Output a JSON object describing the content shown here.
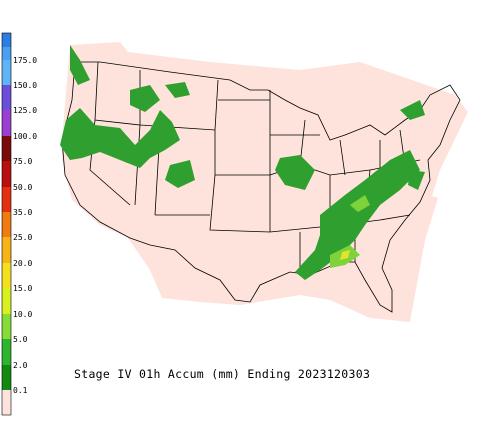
{
  "title": "Stage IV 01h Accum (mm) Ending 2023120303",
  "legend": {
    "labels": [
      "175.0",
      "150.0",
      "125.0",
      "100.0",
      "75.0",
      "50.0",
      "35.0",
      "25.0",
      "20.0",
      "15.0",
      "10.0",
      "5.0",
      "2.0",
      "0.1"
    ]
  }
}
